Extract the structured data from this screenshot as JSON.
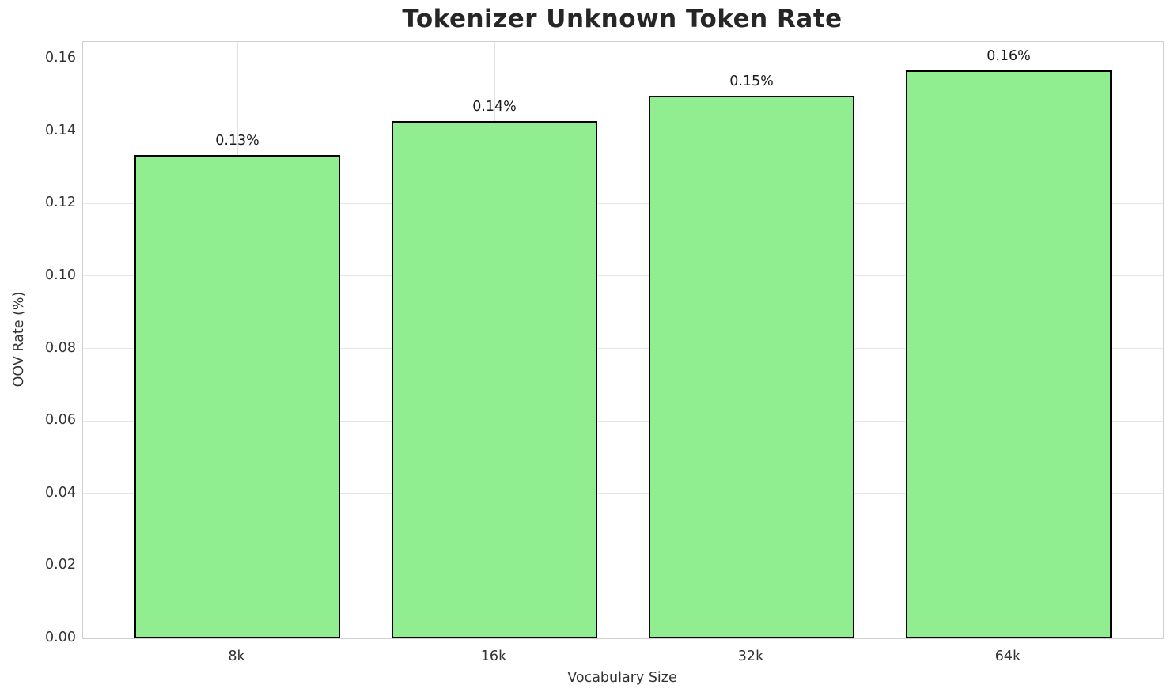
{
  "chart_data": {
    "type": "bar",
    "title": "Tokenizer Unknown Token Rate",
    "xlabel": "Vocabulary Size",
    "ylabel": "OOV Rate (%)",
    "categories": [
      "8k",
      "16k",
      "32k",
      "64k"
    ],
    "values": [
      0.1334,
      0.1427,
      0.1497,
      0.1567
    ],
    "bar_labels": [
      "0.13%",
      "0.14%",
      "0.15%",
      "0.16%"
    ],
    "ytick_labels": [
      "0.00",
      "0.02",
      "0.04",
      "0.06",
      "0.08",
      "0.10",
      "0.12",
      "0.14",
      "0.16"
    ],
    "ytick_values": [
      0.0,
      0.02,
      0.04,
      0.06,
      0.08,
      0.1,
      0.12,
      0.14,
      0.16
    ],
    "ylim": [
      0,
      0.1646
    ],
    "grid": true,
    "legend": "none",
    "colors": {
      "bar_fill": "#90EE90",
      "bar_edge": "#000000",
      "grid": "#e6e6e6",
      "spine": "#d0d0d0",
      "title_text": "#262626",
      "tick_text": "#333333",
      "background": "#ffffff"
    }
  }
}
